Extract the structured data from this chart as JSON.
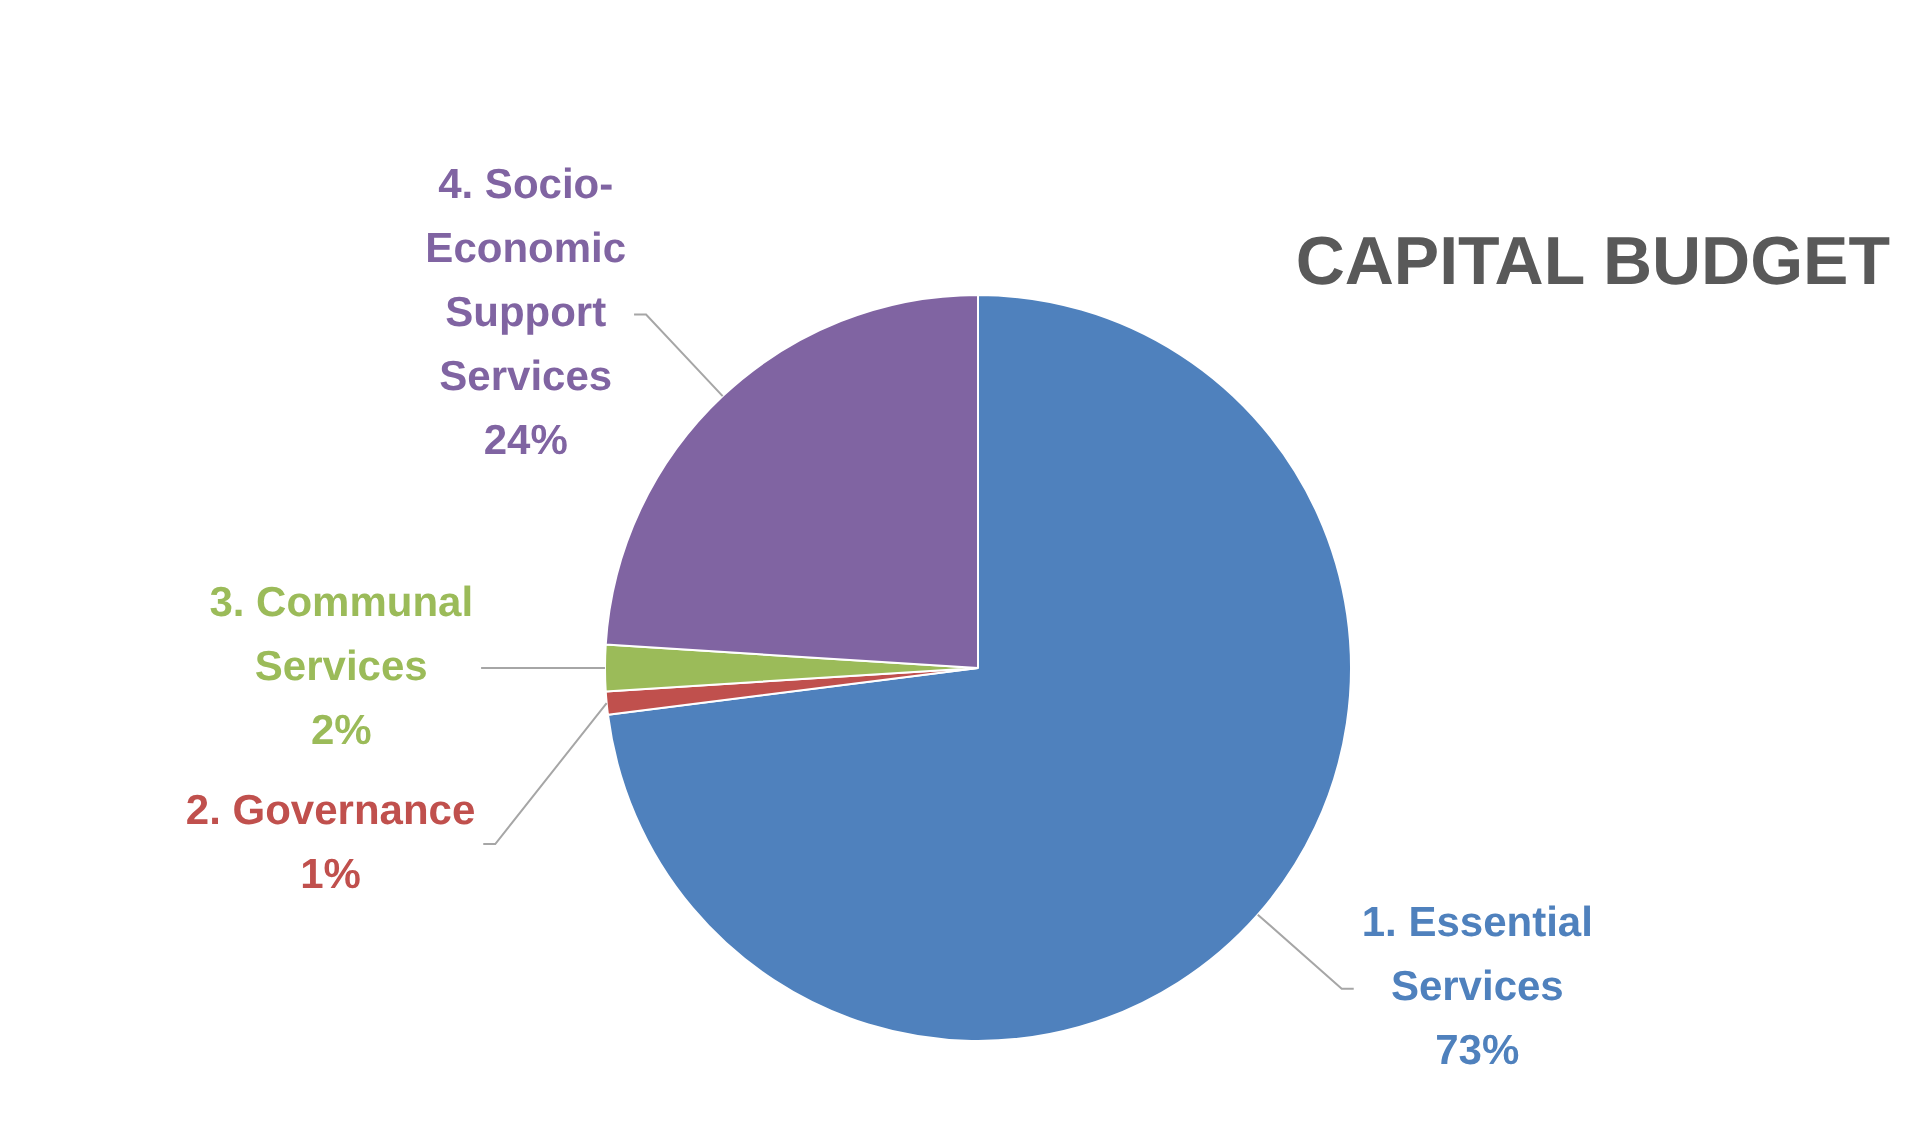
{
  "chart_data": {
    "type": "pie",
    "title": "CAPITAL BUDGET",
    "categories": [
      "1. Essential Services",
      "2. Governance",
      "3. Communal Services",
      "4. Socio-Economic Support Services"
    ],
    "values": [
      73,
      1,
      2,
      24
    ],
    "colors": [
      "#4f81bd",
      "#c0504d",
      "#9bbb59",
      "#8064a2"
    ],
    "value_labels": [
      "73%",
      "1%",
      "2%",
      "24%"
    ]
  }
}
